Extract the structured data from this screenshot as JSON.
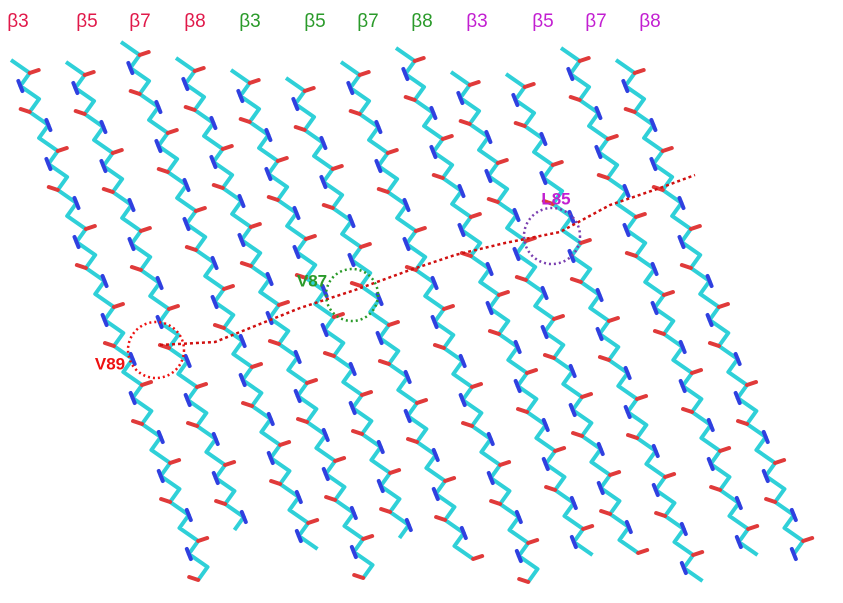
{
  "strand_labels": [
    {
      "label": "β3",
      "color": "#e0194a"
    },
    {
      "label": "β5",
      "color": "#e0194a"
    },
    {
      "label": "β7",
      "color": "#e0194a"
    },
    {
      "label": "β8",
      "color": "#e0194a"
    },
    {
      "label": "β3",
      "color": "#2a9a2a"
    },
    {
      "label": "β5",
      "color": "#2a9a2a"
    },
    {
      "label": "β7",
      "color": "#2a9a2a"
    },
    {
      "label": "β8",
      "color": "#2a9a2a"
    },
    {
      "label": "β3",
      "color": "#c21fd1"
    },
    {
      "label": "β5",
      "color": "#c21fd1"
    },
    {
      "label": "β7",
      "color": "#c21fd1"
    },
    {
      "label": "β8",
      "color": "#c21fd1"
    }
  ],
  "residue_labels": [
    {
      "label": "V89",
      "color": "#ee1111"
    },
    {
      "label": "V87",
      "color": "#2a9a2a"
    },
    {
      "label": "L85",
      "color": "#c21fd1"
    }
  ]
}
